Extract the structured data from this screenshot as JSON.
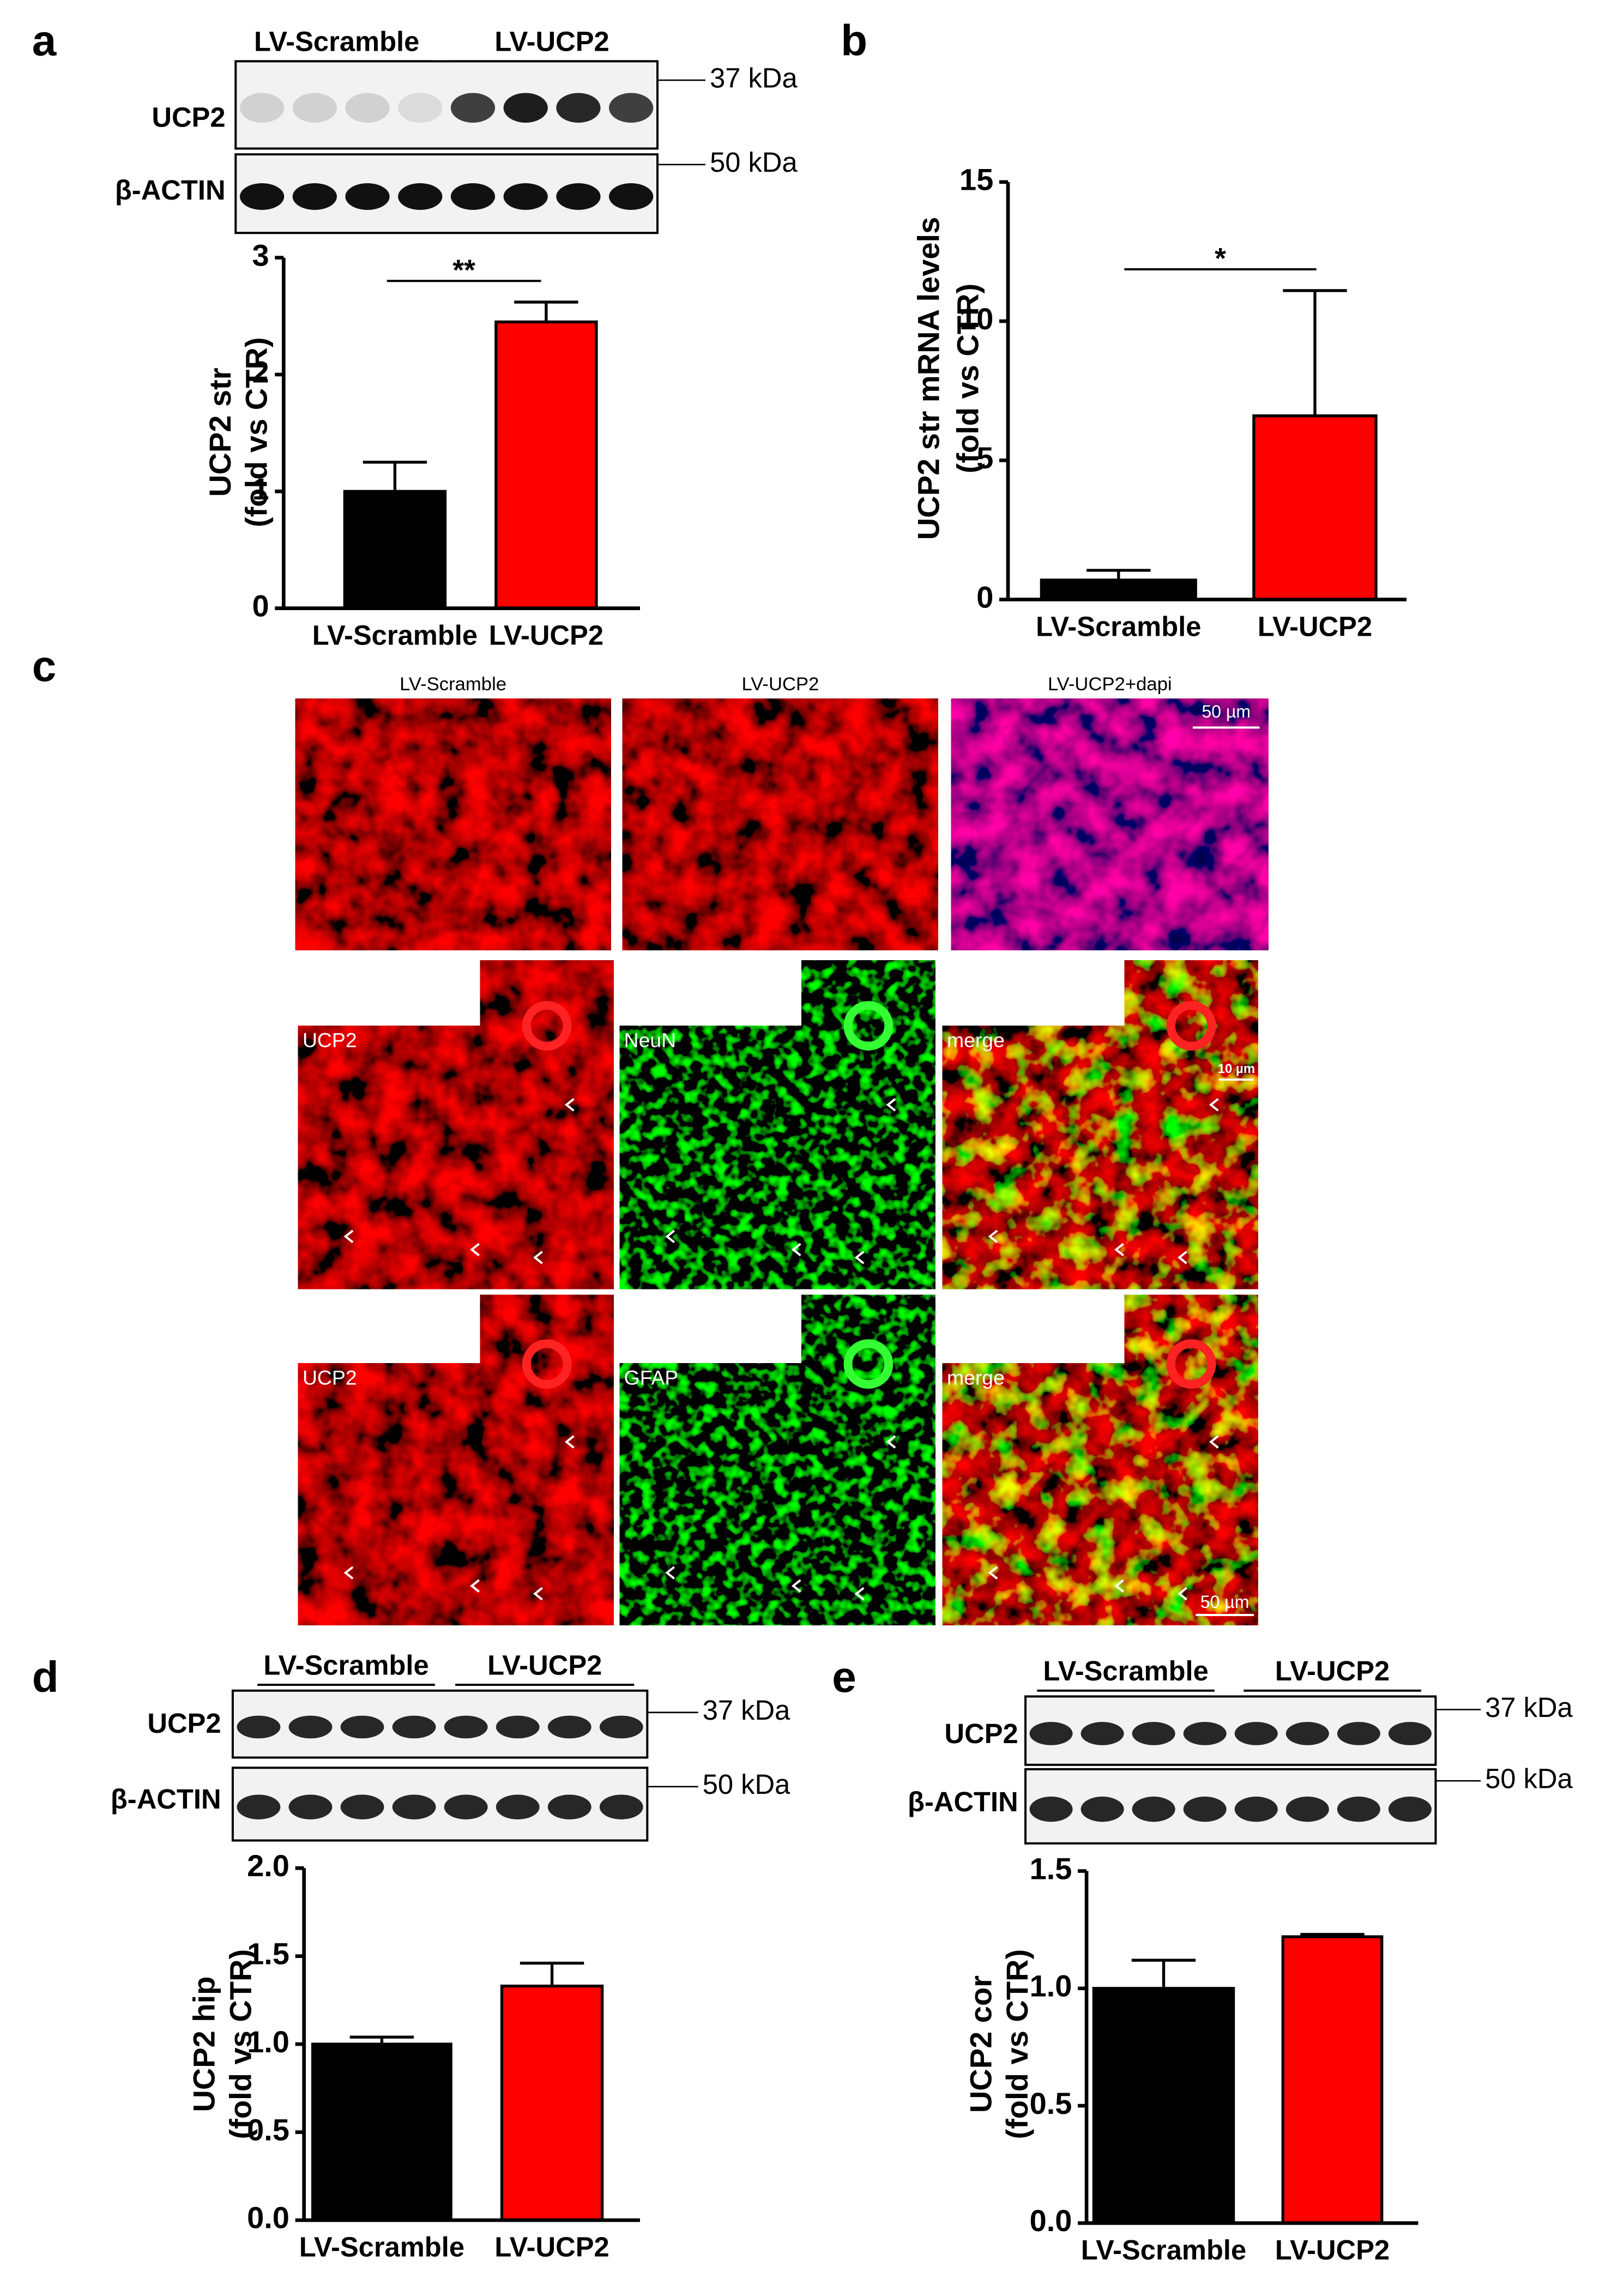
{
  "panel_letters": [
    "a",
    "b",
    "c",
    "d",
    "e"
  ],
  "chart_data": [
    {
      "type": "bar",
      "ylabel": [
        "UCP2 str",
        "(fold vs CTR)"
      ],
      "categories": [
        "LV-Scramble",
        "LV-UCP2"
      ],
      "values": [
        1.0,
        2.45
      ],
      "errors": [
        0.25,
        0.17
      ],
      "colors": [
        "#000000",
        "#ff0000"
      ],
      "ylim": [
        0,
        3
      ],
      "yticks": [
        0,
        1,
        2,
        3
      ],
      "significance": "**"
    },
    {
      "type": "bar",
      "ylabel": [
        "UCP2 str mRNA levels",
        "(fold vs CTR)"
      ],
      "categories": [
        "LV-Scramble",
        "LV-UCP2"
      ],
      "values": [
        0.7,
        6.6
      ],
      "errors": [
        0.35,
        4.5
      ],
      "colors": [
        "#000000",
        "#ff0000"
      ],
      "ylim": [
        0,
        15
      ],
      "yticks": [
        0,
        5,
        10,
        15
      ],
      "significance": "*"
    },
    {
      "type": "bar",
      "ylabel": [
        "UCP2 hip",
        "(fold vs CTR)"
      ],
      "categories": [
        "LV-Scramble",
        "LV-UCP2"
      ],
      "values": [
        1.0,
        1.33
      ],
      "errors": [
        0.04,
        0.13
      ],
      "colors": [
        "#000000",
        "#ff0000"
      ],
      "ylim": [
        0,
        2.0
      ],
      "yticks": [
        {
          "value": 0,
          "label": "0.0"
        },
        {
          "value": 0.5,
          "label": "0.5"
        },
        {
          "value": 1,
          "label": "1.0"
        },
        {
          "value": 1.5,
          "label": "1.5"
        },
        {
          "value": 2,
          "label": "2.0"
        }
      ]
    },
    {
      "type": "bar",
      "ylabel": [
        "UCP2 cor",
        "(fold vs CTR)"
      ],
      "categories": [
        "LV-Scramble",
        "LV-UCP2"
      ],
      "values": [
        1.0,
        1.22
      ],
      "errors": [
        0.12,
        0.01
      ],
      "colors": [
        "#000000",
        "#ff0000"
      ],
      "ylim": [
        0,
        1.5
      ],
      "yticks": [
        {
          "value": 0,
          "label": "0.0"
        },
        {
          "value": 0.5,
          "label": "0.5"
        },
        {
          "value": 1,
          "label": "1.0"
        },
        {
          "value": 1.5,
          "label": "1.5"
        }
      ]
    }
  ],
  "blots": [
    {
      "groups": [
        "LV-Scramble",
        "LV-UCP2"
      ],
      "rows": [
        "UCP2",
        "β-ACTIN"
      ],
      "markers": [
        "37 kDa",
        "50 kDa"
      ]
    },
    {
      "groups": [
        "LV-Scramble",
        "LV-UCP2"
      ],
      "rows": [
        "UCP2",
        "β-ACTIN"
      ],
      "markers": [
        "37 kDa",
        "50 kDa"
      ]
    },
    {
      "groups": [
        "LV-Scramble",
        "LV-UCP2"
      ],
      "rows": [
        "UCP2",
        "β-ACTIN"
      ],
      "markers": [
        "37 kDa",
        "50 kDa"
      ]
    }
  ],
  "micrographs": {
    "columns": [
      "LV-Scramble",
      "LV-UCP2",
      "LV-UCP2+dapi"
    ],
    "row_labels": [
      [
        "UCP2",
        "NeuN",
        "merge"
      ],
      [
        "UCP2",
        "GFAP",
        "merge"
      ]
    ],
    "scale_bars": [
      "50 µm",
      "10 µm",
      "50 µm"
    ]
  }
}
